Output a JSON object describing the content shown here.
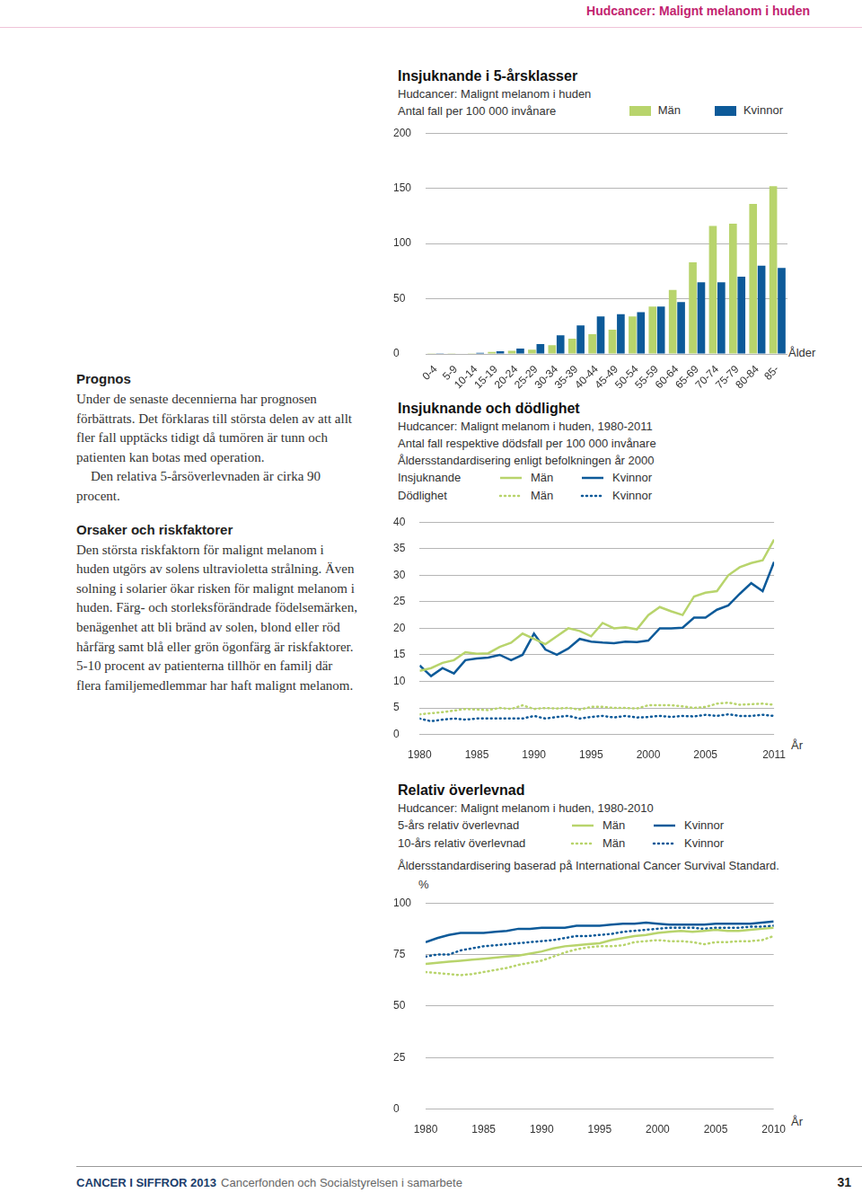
{
  "header": {
    "title": "Hudcancer: Malignt melanom i huden"
  },
  "text": {
    "sections": [
      {
        "heading": "Prognos",
        "paragraphs": [
          "Under de senaste decennierna har prognosen förbättrats. Det förklaras till största delen av att allt fler fall upptäcks tidigt då tumören är tunn och patienten kan botas med operation.",
          "Den relativa 5-årsöverlevnaden är cirka 90 procent."
        ]
      },
      {
        "heading": "Orsaker och riskfaktorer",
        "paragraphs": [
          "Den största riskfaktorn för malignt melanom i huden utgörs av solens ultravioletta strålning. Även solning i solarier ökar risken för malignt melanom i huden. Färg- och storleksförändrade födelsemärken, benägenhet att bli bränd av solen, blond eller röd hårfärg samt blå eller grön ögonfärg är riskfaktorer. 5-10 procent av patienterna tillhör en familj där flera familjemedlemmar har haft malignt melanom."
        ]
      }
    ]
  },
  "chart_data": [
    {
      "type": "bar",
      "title": "Insjuknande i 5-årsklasser",
      "subtitle": "Hudcancer: Malignt melanom i huden",
      "y_label": "Antal fall per 100 000 invånare",
      "x_label": "Ålder",
      "categories": [
        "0-4",
        "5-9",
        "10-14",
        "15-19",
        "20-24",
        "25-29",
        "30-34",
        "35-39",
        "40-44",
        "45-49",
        "50-54",
        "55-59",
        "60-64",
        "65-69",
        "70-74",
        "75-79",
        "80-84",
        "85-"
      ],
      "series": [
        {
          "name": "Män",
          "color": "#b8d46c",
          "values": [
            0.2,
            0.3,
            0.8,
            2,
            3,
            4,
            8,
            14,
            18,
            22,
            34,
            43,
            58,
            83,
            116,
            118,
            136,
            152
          ]
        },
        {
          "name": "Kvinnor",
          "color": "#0d5a99",
          "values": [
            0.2,
            0.5,
            1.2,
            2.5,
            5,
            9,
            17,
            26,
            34,
            36,
            38,
            43,
            47,
            65,
            65,
            70,
            80,
            78
          ]
        }
      ],
      "ylim": [
        0,
        200
      ],
      "yticks": [
        0,
        50,
        100,
        150,
        200
      ],
      "grid": true
    },
    {
      "type": "line",
      "title": "Insjuknande och dödlighet",
      "subtitle": "Hudcancer: Malignt melanom i huden, 1980-2011",
      "y_label": "Antal fall respektive dödsfall per 100 000 invånare",
      "note": "Åldersstandardisering enligt befolkningen år 2000",
      "x_label": "År",
      "x": [
        1980,
        1981,
        1982,
        1983,
        1984,
        1985,
        1986,
        1987,
        1988,
        1989,
        1990,
        1991,
        1992,
        1993,
        1994,
        1995,
        1996,
        1997,
        1998,
        1999,
        2000,
        2001,
        2002,
        2003,
        2004,
        2005,
        2006,
        2007,
        2008,
        2009,
        2010,
        2011
      ],
      "series": [
        {
          "group": "Insjuknande",
          "name": "Män",
          "color": "#b8d46c",
          "line_style": "solid",
          "marker": "none",
          "values": [
            12,
            12.5,
            13.5,
            14,
            15.5,
            15.2,
            15.3,
            16.5,
            17.3,
            19,
            18,
            17,
            18.5,
            20,
            19.5,
            18.5,
            21,
            20,
            20.2,
            19.8,
            22.5,
            24,
            23.2,
            22.5,
            26,
            26.7,
            27,
            30,
            31.5,
            32.3,
            32.8,
            36.7
          ]
        },
        {
          "group": "Insjuknande",
          "name": "Kvinnor",
          "color": "#0d5a99",
          "line_style": "solid",
          "marker": "none",
          "values": [
            13,
            11,
            12.5,
            11.5,
            14,
            14.3,
            14.5,
            15,
            14,
            15,
            19,
            16,
            15,
            16.2,
            18,
            17.5,
            17.3,
            17.2,
            17.5,
            17.4,
            17.7,
            20,
            20,
            20.1,
            22,
            22,
            23.5,
            24.3,
            26.5,
            28.5,
            27,
            32.5
          ]
        },
        {
          "group": "Dödlighet",
          "name": "Män",
          "color": "#b8d46c",
          "line_style": "dotted",
          "marker": "none",
          "values": [
            3.8,
            4,
            4.2,
            4.5,
            4.8,
            4.7,
            4.6,
            5,
            4.8,
            5.5,
            4.8,
            5,
            4.9,
            5,
            4.7,
            5.2,
            5.2,
            5,
            5,
            4.9,
            5.5,
            5.5,
            5.5,
            5.3,
            5,
            5.2,
            5.8,
            6,
            5.6,
            5.7,
            5.8,
            5.6
          ]
        },
        {
          "group": "Dödlighet",
          "name": "Kvinnor",
          "color": "#0d5a99",
          "line_style": "dotted",
          "marker": "none",
          "values": [
            3,
            2.5,
            2.8,
            3,
            2.8,
            3,
            3,
            3,
            3,
            3,
            3.5,
            3,
            3.3,
            3.5,
            3,
            3.3,
            3.5,
            3.2,
            3.5,
            3.2,
            3.3,
            3.5,
            3.3,
            3.5,
            3.4,
            3.7,
            3.5,
            3.8,
            3.5,
            3.5,
            3.7,
            3.5
          ]
        }
      ],
      "xlim": [
        1980,
        2011
      ],
      "xticks": [
        1980,
        1985,
        1990,
        1995,
        2000,
        2005,
        2011
      ],
      "ylim": [
        0,
        40
      ],
      "yticks": [
        0,
        5,
        10,
        15,
        20,
        25,
        30,
        35,
        40
      ],
      "grid": true
    },
    {
      "type": "line",
      "title": "Relativ överlevnad",
      "subtitle": "Hudcancer: Malignt melanom i huden, 1980-2010",
      "note": "Åldersstandardisering baserad på International Cancer Survival Standard.",
      "y_label": "%",
      "x_label": "År",
      "x": [
        1980,
        1981,
        1982,
        1983,
        1984,
        1985,
        1986,
        1987,
        1988,
        1989,
        1990,
        1991,
        1992,
        1993,
        1994,
        1995,
        1996,
        1997,
        1998,
        1999,
        2000,
        2001,
        2002,
        2003,
        2004,
        2005,
        2006,
        2007,
        2008,
        2009,
        2010
      ],
      "series": [
        {
          "group": "5-års relativ överlevnad",
          "name": "Män",
          "color": "#b8d46c",
          "line_style": "solid",
          "marker": "none",
          "values": [
            70.4,
            71,
            71.5,
            72,
            72.5,
            73,
            73.5,
            74,
            74.5,
            75.5,
            76.5,
            78,
            79,
            79.5,
            80,
            80.5,
            82,
            83,
            84,
            84.5,
            85.5,
            86,
            86.5,
            86,
            86.5,
            87,
            86.5,
            86.5,
            87,
            87.5,
            88
          ]
        },
        {
          "group": "5-års relativ överlevnad",
          "name": "Kvinnor",
          "color": "#0d5a99",
          "line_style": "solid",
          "marker": "none",
          "values": [
            81,
            83,
            84.5,
            85.5,
            85.5,
            85.5,
            86,
            86.5,
            87.5,
            87.5,
            88,
            88,
            88,
            89,
            89,
            89,
            89.5,
            90,
            90,
            90.5,
            90,
            89.5,
            89.5,
            89.5,
            89.5,
            90,
            90,
            90,
            90,
            90.5,
            91
          ]
        },
        {
          "group": "10-års relativ överlevnad",
          "name": "Män",
          "color": "#b8d46c",
          "line_style": "dotted",
          "marker": "none",
          "values": [
            66.5,
            66,
            65.5,
            65,
            65.5,
            66.5,
            67.5,
            68.5,
            70,
            71,
            72,
            74,
            76,
            77.5,
            78.5,
            79,
            79,
            79.5,
            81,
            81.5,
            82,
            81.5,
            81.5,
            81,
            80,
            81,
            81,
            81.5,
            81.5,
            82,
            84
          ]
        },
        {
          "group": "10-års relativ överlevnad",
          "name": "Kvinnor",
          "color": "#0d5a99",
          "line_style": "dotted",
          "marker": "none",
          "values": [
            74,
            75,
            75,
            77,
            78,
            79,
            79.5,
            80,
            80.5,
            81,
            81.5,
            82,
            83,
            84,
            84,
            84.5,
            85,
            86,
            86.5,
            87,
            87.5,
            88,
            88,
            88,
            87.5,
            88,
            88,
            88,
            88.5,
            88.5,
            89
          ]
        }
      ],
      "xlim": [
        1980,
        2010
      ],
      "xticks": [
        1980,
        1985,
        1990,
        1995,
        2000,
        2005,
        2010
      ],
      "ylim": [
        0,
        100
      ],
      "yticks": [
        0,
        25,
        50,
        75,
        100
      ],
      "grid": true
    }
  ],
  "footer": {
    "publication": "CANCER I SIFFROR 2013",
    "publisher": "Cancerfonden och Socialstyrelsen i samarbete",
    "page": 31
  }
}
